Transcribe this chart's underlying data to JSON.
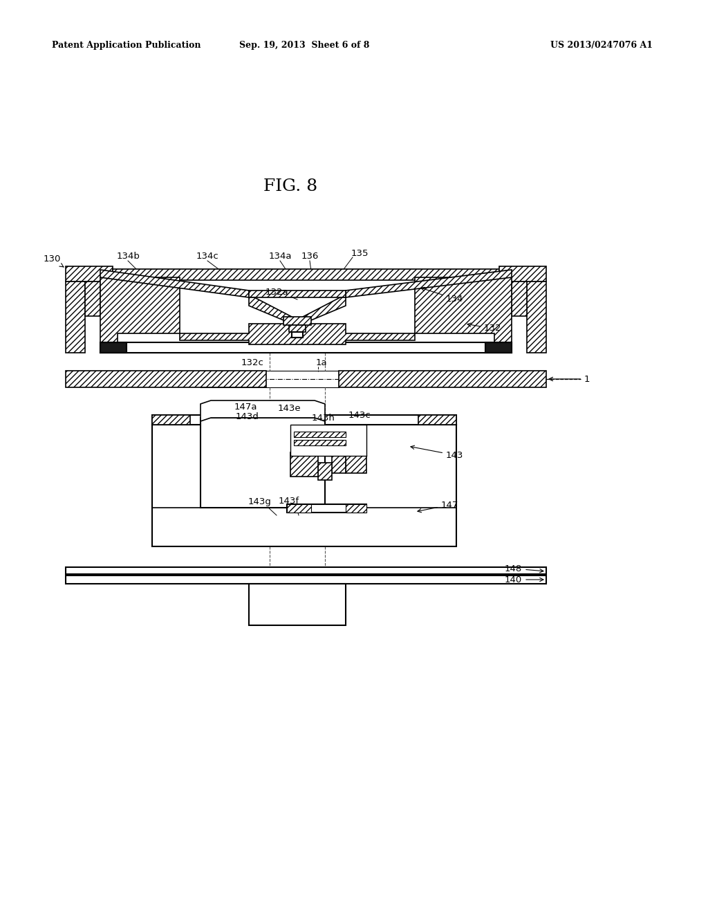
{
  "background": "#ffffff",
  "line_color": "#000000",
  "header_left": "Patent Application Publication",
  "header_center": "Sep. 19, 2013  Sheet 6 of 8",
  "header_right": "US 2013/0247076 A1",
  "fig_title": "FIG. 8"
}
